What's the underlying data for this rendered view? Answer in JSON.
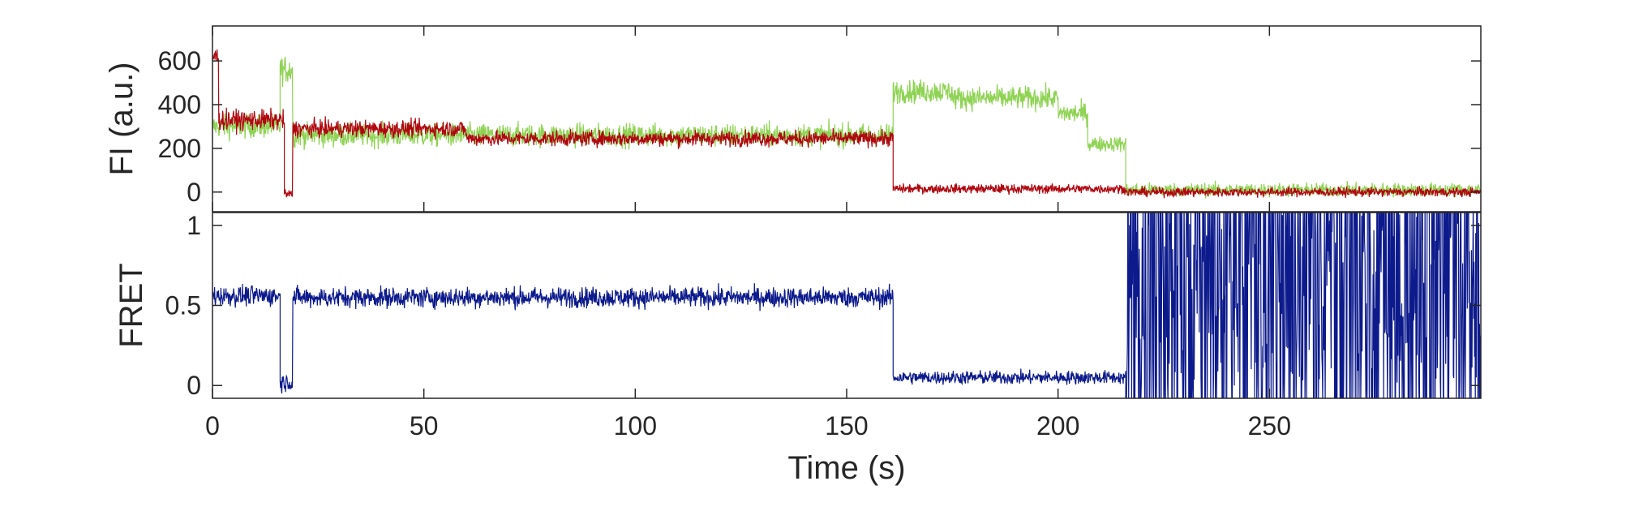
{
  "chart_data": [
    {
      "type": "line",
      "ylabel": "FI (a.u.)",
      "xlabel": "",
      "xlim": [
        0,
        300
      ],
      "ylim": [
        -90,
        760
      ],
      "yticks": [
        0,
        200,
        400,
        600
      ],
      "ytick_labels": [
        "0",
        "200",
        "400",
        "600"
      ],
      "grid": false,
      "legend": "none",
      "series": [
        {
          "color": "#8fd354",
          "segments": [
            {
              "x0": 0,
              "x1": 16,
              "mean": 300,
              "noise": 75
            },
            {
              "x0": 16,
              "x1": 19,
              "mean": 560,
              "noise": 90
            },
            {
              "x0": 19,
              "x1": 161,
              "mean": 260,
              "noise": 75
            },
            {
              "x0": 161,
              "x1": 175,
              "mean": 460,
              "noise": 75
            },
            {
              "x0": 175,
              "x1": 200,
              "mean": 430,
              "noise": 75
            },
            {
              "x0": 200,
              "x1": 207,
              "mean": 360,
              "noise": 70
            },
            {
              "x0": 207,
              "x1": 216,
              "mean": 220,
              "noise": 50
            },
            {
              "x0": 216,
              "x1": 300,
              "mean": 10,
              "noise": 45
            }
          ]
        },
        {
          "color": "#b0070f",
          "segments": [
            {
              "x0": 0,
              "x1": 1.5,
              "mean": 620,
              "noise": 60
            },
            {
              "x0": 1.5,
              "x1": 17,
              "mean": 330,
              "noise": 65
            },
            {
              "x0": 17,
              "x1": 19,
              "mean": -10,
              "noise": 30
            },
            {
              "x0": 19,
              "x1": 60,
              "mean": 290,
              "noise": 55
            },
            {
              "x0": 60,
              "x1": 161,
              "mean": 245,
              "noise": 50
            },
            {
              "x0": 161,
              "x1": 216,
              "mean": 15,
              "noise": 30
            },
            {
              "x0": 216,
              "x1": 300,
              "mean": 0,
              "noise": 30
            }
          ]
        }
      ]
    },
    {
      "type": "line",
      "ylabel": "FRET",
      "xlabel": "Time (s)",
      "xlim": [
        0,
        300
      ],
      "ylim": [
        -0.08,
        1.08
      ],
      "yticks": [
        0,
        0.5,
        1
      ],
      "ytick_labels": [
        "0",
        "0.5",
        "1"
      ],
      "xticks": [
        0,
        50,
        100,
        150,
        200,
        250
      ],
      "xtick_labels": [
        "0",
        "50",
        "100",
        "150",
        "200",
        "250"
      ],
      "grid": false,
      "legend": "none",
      "series": [
        {
          "color": "#0c1a8c",
          "segments": [
            {
              "x0": 0,
              "x1": 16,
              "mean": 0.56,
              "noise": 0.09
            },
            {
              "x0": 16,
              "x1": 19,
              "mean": 0.02,
              "noise": 0.08
            },
            {
              "x0": 19,
              "x1": 161,
              "mean": 0.55,
              "noise": 0.09
            },
            {
              "x0": 161,
              "x1": 216,
              "mean": 0.05,
              "noise": 0.06
            },
            {
              "x0": 216,
              "x1": 300,
              "mean": 0.5,
              "noise": 0.55
            }
          ]
        }
      ]
    }
  ]
}
